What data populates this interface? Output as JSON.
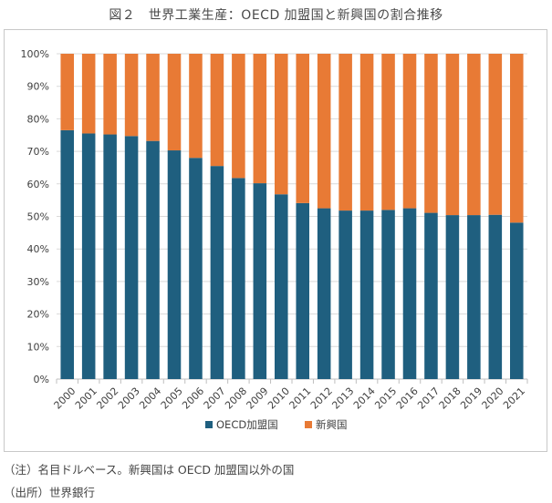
{
  "title": "図２　世界工業生産：OECD 加盟国と新興国の割合推移",
  "notes": {
    "note": "（注）名目ドルベース。新興国は OECD 加盟国以外の国",
    "source": "（出所）世界銀行"
  },
  "colors": {
    "oecd": "#1f5f7f",
    "emerging": "#e87a35",
    "grid": "#d9d9d9",
    "axis": "#bfbfbf"
  },
  "chart_data": {
    "type": "bar",
    "stacked": true,
    "title": "図２　世界工業生産：OECD 加盟国と新興国の割合推移",
    "categories": [
      "2000",
      "2001",
      "2002",
      "2003",
      "2004",
      "2005",
      "2006",
      "2007",
      "2008",
      "2009",
      "2010",
      "2011",
      "2012",
      "2013",
      "2014",
      "2015",
      "2016",
      "2017",
      "2018",
      "2019",
      "2020",
      "2021"
    ],
    "series": [
      {
        "name": "OECD加盟国",
        "values": [
          76.5,
          75.5,
          75.2,
          74.7,
          73.2,
          70.3,
          68.0,
          65.5,
          61.8,
          60.2,
          56.8,
          54.1,
          52.5,
          51.8,
          51.8,
          52.0,
          52.5,
          51.1,
          50.4,
          50.4,
          50.5,
          48.1
        ]
      },
      {
        "name": "新興国",
        "values": [
          23.5,
          24.5,
          24.8,
          25.3,
          26.8,
          29.7,
          32.0,
          34.5,
          38.2,
          39.8,
          43.2,
          45.9,
          47.5,
          48.2,
          48.2,
          48.0,
          47.5,
          48.9,
          49.6,
          49.6,
          49.5,
          51.9
        ]
      }
    ],
    "ylim": [
      0,
      100
    ],
    "yticks": [
      "0%",
      "10%",
      "20%",
      "30%",
      "40%",
      "50%",
      "60%",
      "70%",
      "80%",
      "90%",
      "100%"
    ],
    "xlabel": "",
    "ylabel": "",
    "grid": true,
    "legend": "bottom"
  }
}
